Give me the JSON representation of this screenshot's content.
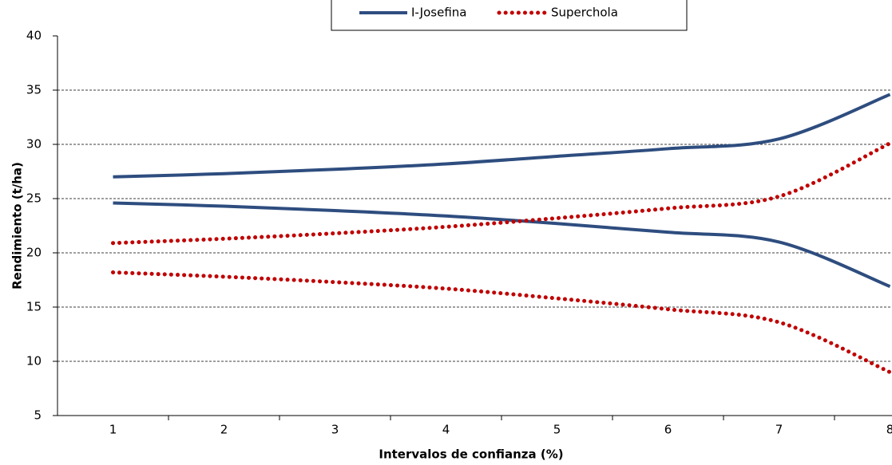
{
  "chart_data": {
    "type": "line",
    "x_label": "Intervalos de confianza (%)",
    "y_label": "Rendimiento (t/ha)",
    "categories": [
      "1",
      "2",
      "3",
      "4",
      "5",
      "6",
      "7",
      "8"
    ],
    "series": [
      {
        "name": "I-Josefina",
        "color": "#2e4d7f",
        "style": "solid",
        "upper": [
          27.0,
          27.3,
          27.7,
          28.2,
          28.9,
          29.6,
          30.5,
          34.6
        ],
        "lower": [
          24.6,
          24.3,
          23.9,
          23.4,
          22.7,
          21.9,
          21.0,
          16.9
        ]
      },
      {
        "name": "Superchola",
        "color": "#c00000",
        "style": "dotted",
        "upper": [
          20.9,
          21.3,
          21.8,
          22.4,
          23.2,
          24.1,
          25.2,
          30.1
        ],
        "lower": [
          18.2,
          17.8,
          17.3,
          16.7,
          15.8,
          14.8,
          13.6,
          9.0
        ]
      }
    ],
    "ylim": [
      5,
      40
    ],
    "yticks": [
      5,
      10,
      15,
      20,
      25,
      30,
      35,
      40
    ],
    "grid": true,
    "legend": "top"
  }
}
